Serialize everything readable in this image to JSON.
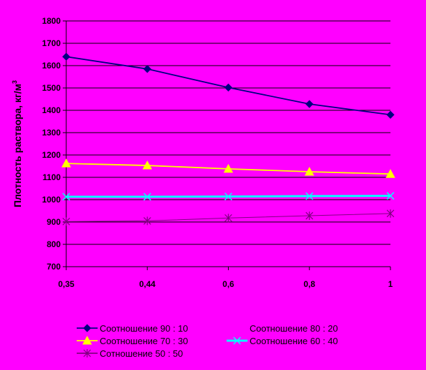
{
  "chart_data": {
    "type": "line",
    "categories": [
      "0,35",
      "0,44",
      "0,6",
      "0,8",
      "1"
    ],
    "ylabel": "Плотность раствора, кг/м",
    "ylabel_sup": "3",
    "ylim": [
      700,
      1800
    ],
    "yticks": [
      700,
      800,
      900,
      1000,
      1100,
      1200,
      1300,
      1400,
      1500,
      1600,
      1700,
      1800
    ],
    "grid": true,
    "legend_position": "bottom",
    "colors": {
      "background": "#FF00FF",
      "grid": "#000000"
    },
    "series": [
      {
        "name": "Соотношение 90 : 10",
        "color": "#000080",
        "marker": "diamond",
        "values": [
          1640,
          1585,
          1502,
          1428,
          1380
        ]
      },
      {
        "name": "Соотношение 80 : 20",
        "color": "#FF00FF",
        "marker": "square",
        "values": [
          null,
          null,
          null,
          null,
          null
        ]
      },
      {
        "name": "Соотношение  70 : 30",
        "color": "#FFFF00",
        "marker": "triangle",
        "values": [
          1162,
          1153,
          1138,
          1125,
          1115
        ]
      },
      {
        "name": "Соотношение 60 : 40",
        "color": "#00FFFF",
        "marker": "x",
        "values": [
          1013,
          1013,
          1014,
          1016,
          1017
        ]
      },
      {
        "name": "Сотношение 50 : 50",
        "color": "#800080",
        "marker": "star",
        "values": [
          902,
          905,
          918,
          928,
          938
        ]
      }
    ]
  }
}
